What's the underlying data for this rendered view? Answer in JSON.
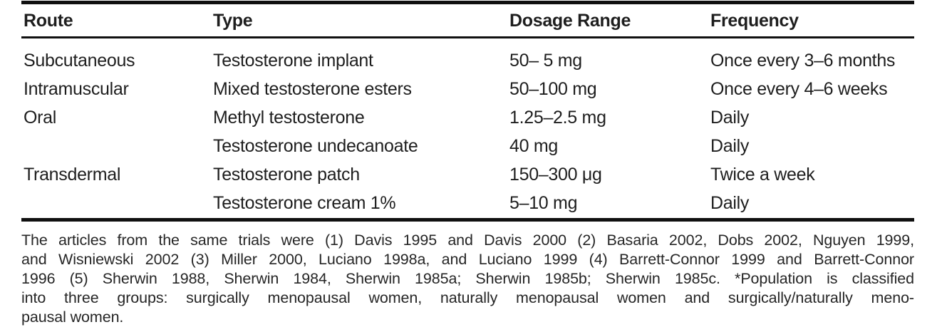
{
  "table": {
    "columns": [
      "Route",
      "Type",
      "Dosage Range",
      "Frequency"
    ],
    "rows": [
      {
        "route": "Subcutaneous",
        "type": "Testosterone implant",
        "dosage": "50– 5 mg",
        "frequency": "Once every 3–6 months"
      },
      {
        "route": "Intramuscular",
        "type": "Mixed testosterone esters",
        "dosage": "50–100 mg",
        "frequency": "Once every 4–6 weeks"
      },
      {
        "route": "Oral",
        "type": "Methyl testosterone",
        "dosage": "1.25–2.5 mg",
        "frequency": "Daily"
      },
      {
        "route": "",
        "type": "Testosterone undecanoate",
        "dosage": "40 mg",
        "frequency": "Daily"
      },
      {
        "route": "Transdermal",
        "type": "Testosterone patch",
        "dosage": "150–300 μg",
        "frequency": "Twice a week"
      },
      {
        "route": "",
        "type": "Testosterone cream 1%",
        "dosage": "5–10 mg",
        "frequency": "Daily"
      }
    ]
  },
  "footnote": {
    "lines": [
      "The articles from the same trials were (1) Davis 1995 and Davis 2000 (2) Basaria 2002, Dobs 2002, Nguyen 1999,",
      "and Wisniewski 2002 (3) Miller 2000, Luciano 1998a, and Luciano 1999 (4) Barrett-Connor 1999 and Barrett-Connor",
      "1996 (5) Sherwin 1988, Sherwin 1984, Sherwin 1985a; Sherwin 1985b; Sherwin 1985c. *Population is classified",
      "into three groups: surgically menopausal women, naturally menopausal women and surgically/naturally meno-",
      "pausal women."
    ]
  },
  "colors": {
    "text": "#1e1e1e",
    "rule": "#101010",
    "background": "#ffffff"
  }
}
